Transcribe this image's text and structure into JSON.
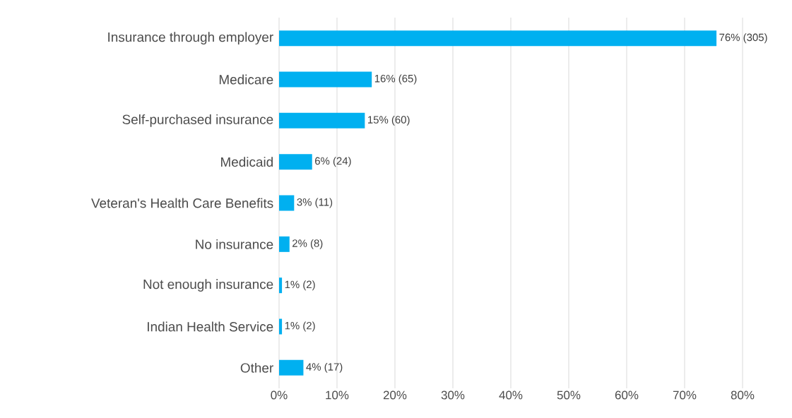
{
  "chart_data": {
    "type": "bar",
    "orientation": "horizontal",
    "categories": [
      "Insurance through employer",
      "Medicare",
      "Self-purchased insurance",
      "Medicaid",
      "Veteran's Health Care Benefits",
      "No insurance",
      "Not enough insurance",
      "Indian Health Service",
      "Other"
    ],
    "values": [
      75.5,
      16,
      14.8,
      5.7,
      2.6,
      1.8,
      0.5,
      0.5,
      4.2
    ],
    "value_labels": [
      "76% (305)",
      "16%  (65)",
      "15%  (60)",
      "6% (24)",
      "3%  (11)",
      "2%  (8)",
      "1% (2)",
      "1% (2)",
      "4%  (17)"
    ],
    "color": "#00b0f0",
    "xlim": [
      0,
      80
    ],
    "xticks": [
      {
        "value": 0,
        "label": "0%"
      },
      {
        "value": 10,
        "label": "10%"
      },
      {
        "value": 20,
        "label": "20%"
      },
      {
        "value": 30,
        "label": "30%"
      },
      {
        "value": 40,
        "label": "40%"
      },
      {
        "value": 50,
        "label": "50%"
      },
      {
        "value": 60,
        "label": "60%"
      },
      {
        "value": 70,
        "label": "70%"
      },
      {
        "value": 80,
        "label": "80%"
      }
    ],
    "grid": "x"
  }
}
